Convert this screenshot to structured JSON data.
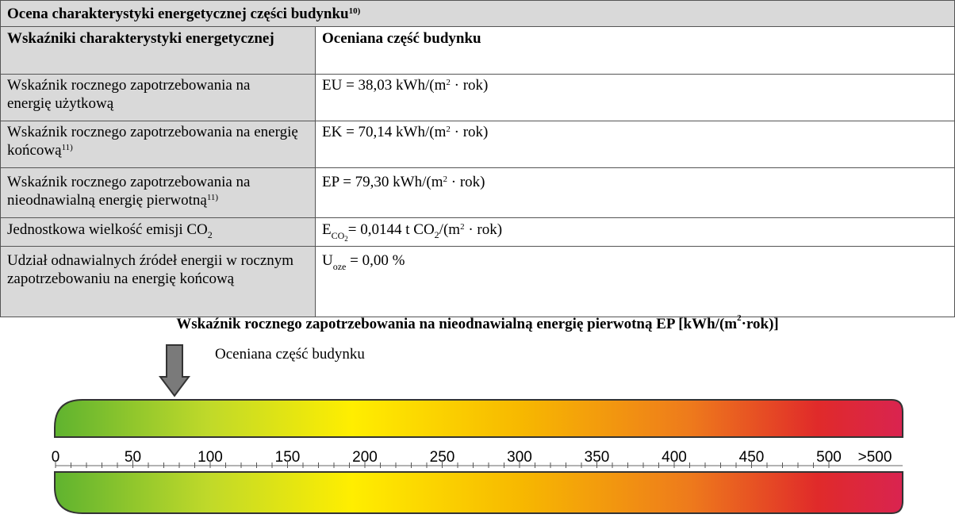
{
  "table": {
    "title": "Ocena charakterystyki energetycznej części budynku",
    "title_ref": "10)",
    "col1_header": "Wskaźniki charakterystyki energetycznej",
    "col2_header": "Oceniana część budynku",
    "rows": [
      {
        "label": "Wskaźnik rocznego zapotrzebowania na energię użytkową",
        "label_ref": "",
        "prefix": "EU = 38,03 kWh/(m",
        "sup": "2",
        "suffix": " · rok)"
      },
      {
        "label": "Wskaźnik rocznego zapotrzebowania na energię końcową",
        "label_ref": "11)",
        "prefix": "EK = 70,14 kWh/(m",
        "sup": "2",
        "suffix": " · rok)"
      },
      {
        "label": "Wskaźnik rocznego zapotrzebowania na nieodnawialną energię pierwotną",
        "label_ref": "11)",
        "prefix": "EP = 79,30 kWh/(m",
        "sup": "2",
        "suffix": " · rok)"
      },
      {
        "label": "Jednostkowa wielkość emisji CO",
        "label_sub": "2",
        "value": "E",
        "value_sub": "CO",
        "value_sub2": "2",
        "value_mid": "= 0,0144 t CO",
        "value_mid_sub": "2",
        "value_mid2": "/(m",
        "sup": "2",
        "suffix": " · rok)"
      },
      {
        "label": "Udział odnawialnych źródeł energii w rocznym zapotrzebowaniu na energię końcową",
        "value": "U",
        "value_sub": "oze",
        "suffix": " = 0,00 %"
      }
    ]
  },
  "scale": {
    "title": "Wskaźnik rocznego zapotrzebowania na nieodnawialną energię pierwotną EP [kWh/(m",
    "title_sup": "2",
    "title_end": "·rok)]",
    "assessed_label": "Oceniana część budynku",
    "ep_value": 79.3,
    "ticks": [
      "0",
      "50",
      "100",
      "150",
      "200",
      "250",
      "300",
      "350",
      "400",
      "450",
      "500",
      ">500"
    ],
    "min": 0,
    "max": 500
  }
}
